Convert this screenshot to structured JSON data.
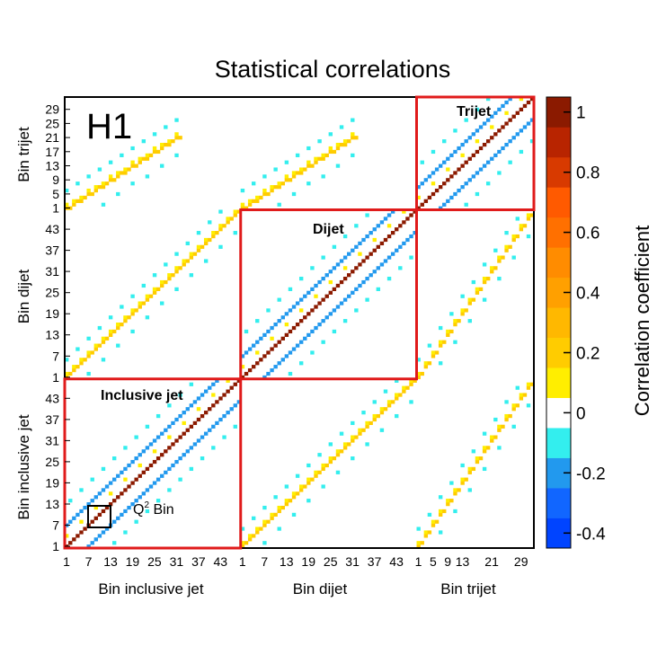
{
  "chart_data": {
    "type": "heatmap",
    "title": "Statistical correlations",
    "experiment_label": "H1",
    "blocks": [
      {
        "key": "inclusive",
        "name": "Inclusive jet",
        "bins": 48,
        "axis_label": "Bin inclusive jet"
      },
      {
        "key": "dijet",
        "name": "Dijet",
        "bins": 48,
        "axis_label": "Bin dijet"
      },
      {
        "key": "trijet",
        "name": "Trijet",
        "bins": 32,
        "axis_label": "Bin trijet"
      }
    ],
    "x_ticks": {
      "inclusive": [
        "1",
        "7",
        "13",
        "19",
        "25",
        "31",
        "37",
        "43"
      ],
      "dijet": [
        "1",
        "7",
        "13",
        "19",
        "25",
        "31",
        "37",
        "43"
      ],
      "trijet": [
        "1",
        "5",
        "9",
        "13",
        "21",
        "29"
      ]
    },
    "y_ticks": {
      "inclusive": [
        "1",
        "7",
        "13",
        "19",
        "25",
        "31",
        "37",
        "43"
      ],
      "dijet": [
        "1",
        "7",
        "13",
        "19",
        "25",
        "31",
        "37",
        "43"
      ],
      "trijet": [
        "1",
        "5",
        "9",
        "13",
        "17",
        "21",
        "25",
        "29"
      ]
    },
    "x_tick_text": {
      "trijet_compact": "5 913"
    },
    "q2_annotation": "Q²",
    "q2_annotation_sup": "2",
    "q2_annotation_main": "Q",
    "q2_annotation_suffix": " Bin",
    "colorbar": {
      "label": "Correlation coefficient",
      "range": [
        -0.45,
        1.05
      ],
      "ticks": [
        "1",
        "0.8",
        "0.6",
        "0.4",
        "0.2",
        "0",
        "-0.2",
        "-0.4"
      ],
      "tick_values": [
        1,
        0.8,
        0.6,
        0.4,
        0.2,
        0,
        -0.2,
        -0.4
      ]
    },
    "pattern": {
      "diagonal": 1.0,
      "near_diagonal": -0.25,
      "far_diagonal": -0.1,
      "cross_block_diagonal": 0.25,
      "cross_block_side": -0.08
    },
    "colors": {
      "diagonal": "#8b1a00",
      "box": "#e01b1b",
      "block_label": "#e01b1b"
    }
  }
}
